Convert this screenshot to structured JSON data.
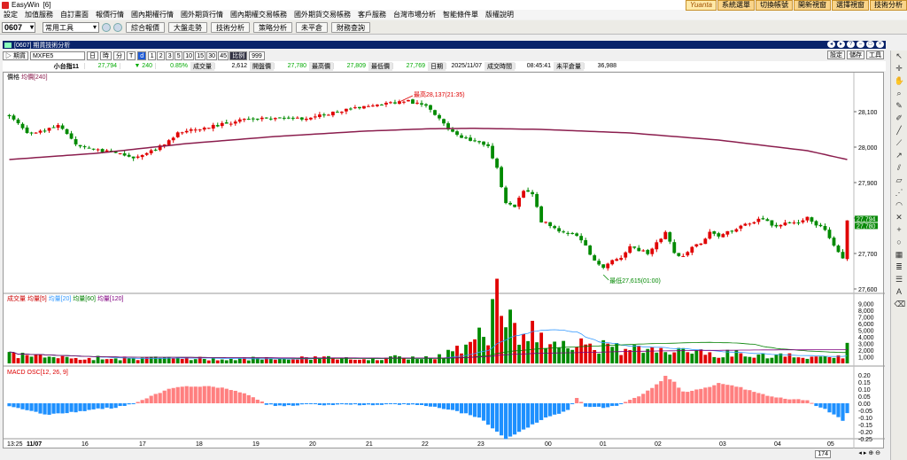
{
  "app": {
    "title": "EasyWin",
    "instance": "[6]"
  },
  "menu": [
    "設定",
    "加值服務",
    "自訂畫面",
    "報價行情",
    "國內期權行情",
    "國外期貨行情",
    "國內期權交易帳務",
    "國外期貨交易帳務",
    "客戶服務",
    "台灣市場分析",
    "智能條件單",
    "版權說明"
  ],
  "top_buttons": {
    "brand": "Yuanta",
    "items": [
      "系統選單",
      "切換帳號",
      "開新視窗",
      "選擇視窗",
      "技術分析"
    ]
  },
  "toolbar": {
    "code": "0607",
    "layout": "常用工具",
    "buttons": [
      "綜合報價",
      "大盤走勢",
      "技術分析",
      "策略分析",
      "未平倉",
      "財務查詢"
    ]
  },
  "window": {
    "title": "[0607] 期貨技術分析"
  },
  "controls": {
    "market": "期貨",
    "symbol": "MXFE5",
    "period_label": "日",
    "tick_label": "時",
    "period2": "分",
    "period3": "T",
    "period4": "d",
    "periods": [
      "1",
      "2",
      "3",
      "5",
      "10",
      "15",
      "30",
      "45"
    ],
    "count_label": "比例",
    "count": "999",
    "right": [
      "設定",
      "儲存",
      "工具"
    ]
  },
  "quote": {
    "name": "小台指11",
    "price": "27,794",
    "change": "▼ 240",
    "pct": "0.85%",
    "vol_label": "成交量",
    "vol": "2,612",
    "open_label": "開盤價",
    "open": "27,780",
    "high_label": "最高價",
    "high": "27,809",
    "low_label": "最低價",
    "low": "27,769",
    "date_label": "日期",
    "date": "2025/11/07",
    "time_label": "成交時間",
    "time": "08:45:41",
    "oi_label": "未平倉量",
    "oi": "36,988"
  },
  "chart_data": [
    {
      "type": "candlestick",
      "panel": "price",
      "title": "價格",
      "legend": [
        {
          "name": "均價[240]",
          "color": "#8b1e4e"
        }
      ],
      "yticks": [
        28100,
        28000,
        27900,
        27800,
        27700,
        27600
      ],
      "ylim": [
        27590,
        28185
      ],
      "annotations": {
        "high": "最高28,137(21:35)",
        "low": "最低27,615(01:00)"
      },
      "last_price": "27,794",
      "last_price_2": "27,780",
      "anchors": [
        [
          0,
          28090
        ],
        [
          4,
          28040
        ],
        [
          8,
          28050
        ],
        [
          11,
          28060
        ],
        [
          15,
          28010
        ],
        [
          19,
          27990
        ],
        [
          23,
          27990
        ],
        [
          27,
          27970
        ],
        [
          31,
          27980
        ],
        [
          35,
          28010
        ],
        [
          38,
          28040
        ],
        [
          42,
          28050
        ],
        [
          46,
          28060
        ],
        [
          50,
          28070
        ],
        [
          54,
          28080
        ],
        [
          58,
          28080
        ],
        [
          62,
          28080
        ],
        [
          66,
          28080
        ],
        [
          70,
          28090
        ],
        [
          74,
          28100
        ],
        [
          78,
          28110
        ],
        [
          82,
          28120
        ],
        [
          86,
          28125
        ],
        [
          90,
          28130
        ],
        [
          94,
          28115
        ],
        [
          97,
          28080
        ],
        [
          100,
          28040
        ],
        [
          104,
          28020
        ],
        [
          108,
          28000
        ],
        [
          110,
          27940
        ],
        [
          112,
          27840
        ],
        [
          114,
          27830
        ],
        [
          116,
          27880
        ],
        [
          118,
          27870
        ],
        [
          120,
          27790
        ],
        [
          122,
          27780
        ],
        [
          124,
          27760
        ],
        [
          126,
          27760
        ],
        [
          128,
          27750
        ],
        [
          130,
          27720
        ],
        [
          132,
          27680
        ],
        [
          134,
          27660
        ],
        [
          136,
          27680
        ],
        [
          138,
          27690
        ],
        [
          140,
          27720
        ],
        [
          142,
          27710
        ],
        [
          144,
          27700
        ],
        [
          146,
          27730
        ],
        [
          148,
          27760
        ],
        [
          150,
          27700
        ],
        [
          152,
          27690
        ],
        [
          154,
          27720
        ],
        [
          156,
          27730
        ],
        [
          158,
          27760
        ],
        [
          160,
          27750
        ],
        [
          162,
          27760
        ],
        [
          164,
          27770
        ],
        [
          166,
          27780
        ],
        [
          168,
          27790
        ],
        [
          170,
          27800
        ],
        [
          172,
          27780
        ],
        [
          174,
          27780
        ],
        [
          176,
          27790
        ],
        [
          178,
          27790
        ],
        [
          180,
          27800
        ],
        [
          182,
          27780
        ],
        [
          184,
          27770
        ],
        [
          186,
          27720
        ],
        [
          188,
          27690
        ],
        [
          189,
          27790
        ]
      ],
      "ma": [
        [
          0,
          27965
        ],
        [
          20,
          27983
        ],
        [
          40,
          28010
        ],
        [
          60,
          28030
        ],
        [
          80,
          28045
        ],
        [
          95,
          28052
        ],
        [
          105,
          28053
        ],
        [
          120,
          28050
        ],
        [
          140,
          28040
        ],
        [
          160,
          28020
        ],
        [
          180,
          27990
        ],
        [
          189,
          27965
        ]
      ]
    },
    {
      "type": "bar",
      "panel": "volume",
      "legend": [
        {
          "name": "成交量",
          "color": "#c00"
        },
        {
          "name": "均量[5]",
          "color": "#c00"
        },
        {
          "name": "均量[20]",
          "color": "#3399ff"
        },
        {
          "name": "均量[60]",
          "color": "#008000"
        },
        {
          "name": "均量[120]",
          "color": "#800080"
        }
      ],
      "yticks": [
        9000,
        8000,
        7000,
        6000,
        5000,
        4000,
        3000,
        2000,
        1000
      ],
      "ylim": [
        0,
        9300
      ],
      "anchors": [
        [
          0,
          1300
        ],
        [
          10,
          900
        ],
        [
          20,
          800
        ],
        [
          40,
          700
        ],
        [
          60,
          700
        ],
        [
          80,
          800
        ],
        [
          95,
          900
        ],
        [
          100,
          1600
        ],
        [
          104,
          3000
        ],
        [
          108,
          4800
        ],
        [
          110,
          9000
        ],
        [
          112,
          6400
        ],
        [
          114,
          5000
        ],
        [
          116,
          4700
        ],
        [
          118,
          5200
        ],
        [
          120,
          4200
        ],
        [
          124,
          3600
        ],
        [
          128,
          3000
        ],
        [
          132,
          2500
        ],
        [
          136,
          2300
        ],
        [
          140,
          2100
        ],
        [
          150,
          1800
        ],
        [
          160,
          1500
        ],
        [
          170,
          1300
        ],
        [
          180,
          1100
        ],
        [
          188,
          1000
        ],
        [
          189,
          2600
        ]
      ]
    },
    {
      "type": "bar",
      "panel": "macd",
      "title": "MACD OSC[12, 26, 9]",
      "color": "#d00",
      "yticks": [
        0.2,
        0.15,
        0.1,
        0.05,
        0,
        -0.05,
        -0.1,
        -0.15,
        -0.2,
        -0.25
      ],
      "ylim": [
        -0.27,
        0.22
      ],
      "anchors": [
        [
          0,
          -0.02
        ],
        [
          4,
          -0.05
        ],
        [
          8,
          -0.08
        ],
        [
          12,
          -0.07
        ],
        [
          16,
          -0.06
        ],
        [
          20,
          -0.04
        ],
        [
          24,
          -0.03
        ],
        [
          28,
          -0.005
        ],
        [
          32,
          0.05
        ],
        [
          36,
          0.1
        ],
        [
          40,
          0.12
        ],
        [
          44,
          0.12
        ],
        [
          48,
          0.11
        ],
        [
          52,
          0.08
        ],
        [
          56,
          0.03
        ],
        [
          58,
          -0.01
        ],
        [
          62,
          -0.02
        ],
        [
          66,
          -0.01
        ],
        [
          70,
          -0.01
        ],
        [
          80,
          -0.01
        ],
        [
          90,
          -0.01
        ],
        [
          95,
          -0.02
        ],
        [
          100,
          -0.05
        ],
        [
          106,
          -0.1
        ],
        [
          110,
          -0.2
        ],
        [
          112,
          -0.25
        ],
        [
          114,
          -0.22
        ],
        [
          118,
          -0.15
        ],
        [
          122,
          -0.09
        ],
        [
          126,
          -0.05
        ],
        [
          128,
          0.04
        ],
        [
          130,
          -0.02
        ],
        [
          134,
          -0.03
        ],
        [
          138,
          -0.01
        ],
        [
          142,
          0.05
        ],
        [
          146,
          0.13
        ],
        [
          148,
          0.19
        ],
        [
          150,
          0.15
        ],
        [
          152,
          0.08
        ],
        [
          156,
          0.1
        ],
        [
          160,
          0.14
        ],
        [
          164,
          0.12
        ],
        [
          168,
          0.08
        ],
        [
          172,
          0.05
        ],
        [
          176,
          0.03
        ],
        [
          180,
          0.02
        ],
        [
          182,
          -0.02
        ],
        [
          184,
          -0.04
        ],
        [
          186,
          -0.08
        ],
        [
          188,
          -0.12
        ],
        [
          189,
          -0.07
        ]
      ]
    }
  ],
  "x_axis": {
    "labels": [
      "13:25",
      "11/07",
      "16",
      "17",
      "18",
      "19",
      "20",
      "21",
      "22",
      "23",
      "00",
      "01",
      "02",
      "03",
      "04",
      "05"
    ],
    "positions": [
      0,
      3,
      11,
      24,
      36,
      48,
      60,
      72,
      84,
      96,
      108,
      120,
      132,
      144,
      156,
      168
    ]
  },
  "status": {
    "zoom": "174"
  }
}
